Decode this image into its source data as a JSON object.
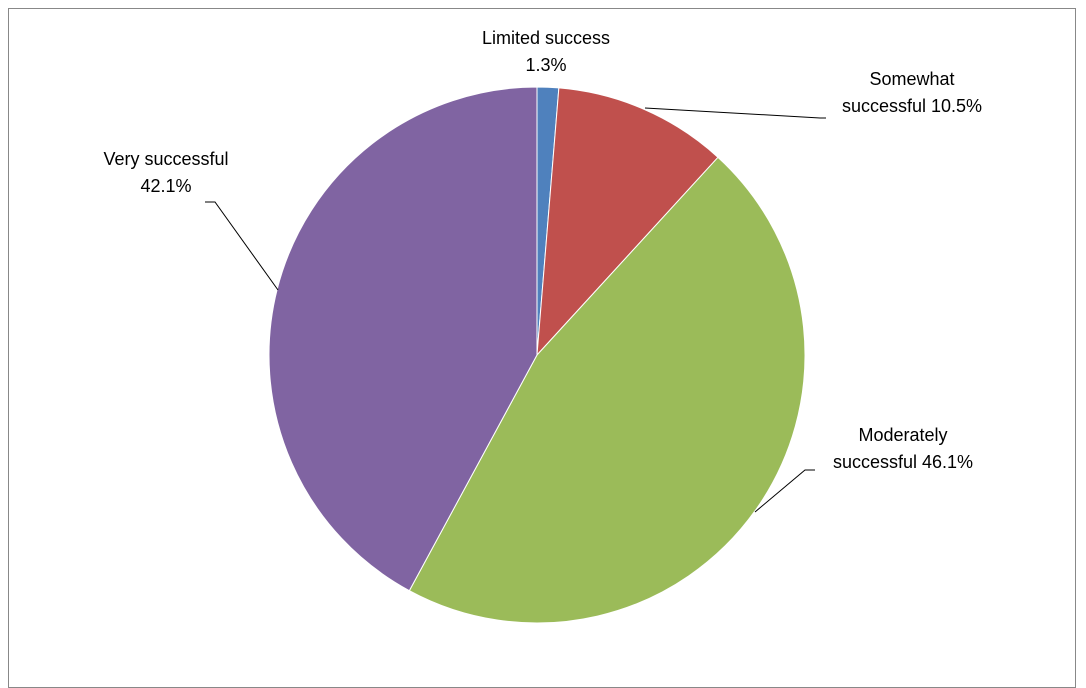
{
  "chart_data": {
    "type": "pie",
    "categories": [
      "Limited success",
      "Somewhat successful",
      "Moderately successful",
      "Very successful"
    ],
    "values": [
      1.3,
      10.5,
      46.1,
      42.1
    ],
    "value_labels": [
      "1.3%",
      "10.5%",
      "46.1%",
      "42.1%"
    ],
    "colors": [
      "#4f81bd",
      "#c0504d",
      "#9bbb59",
      "#8064a2"
    ]
  }
}
